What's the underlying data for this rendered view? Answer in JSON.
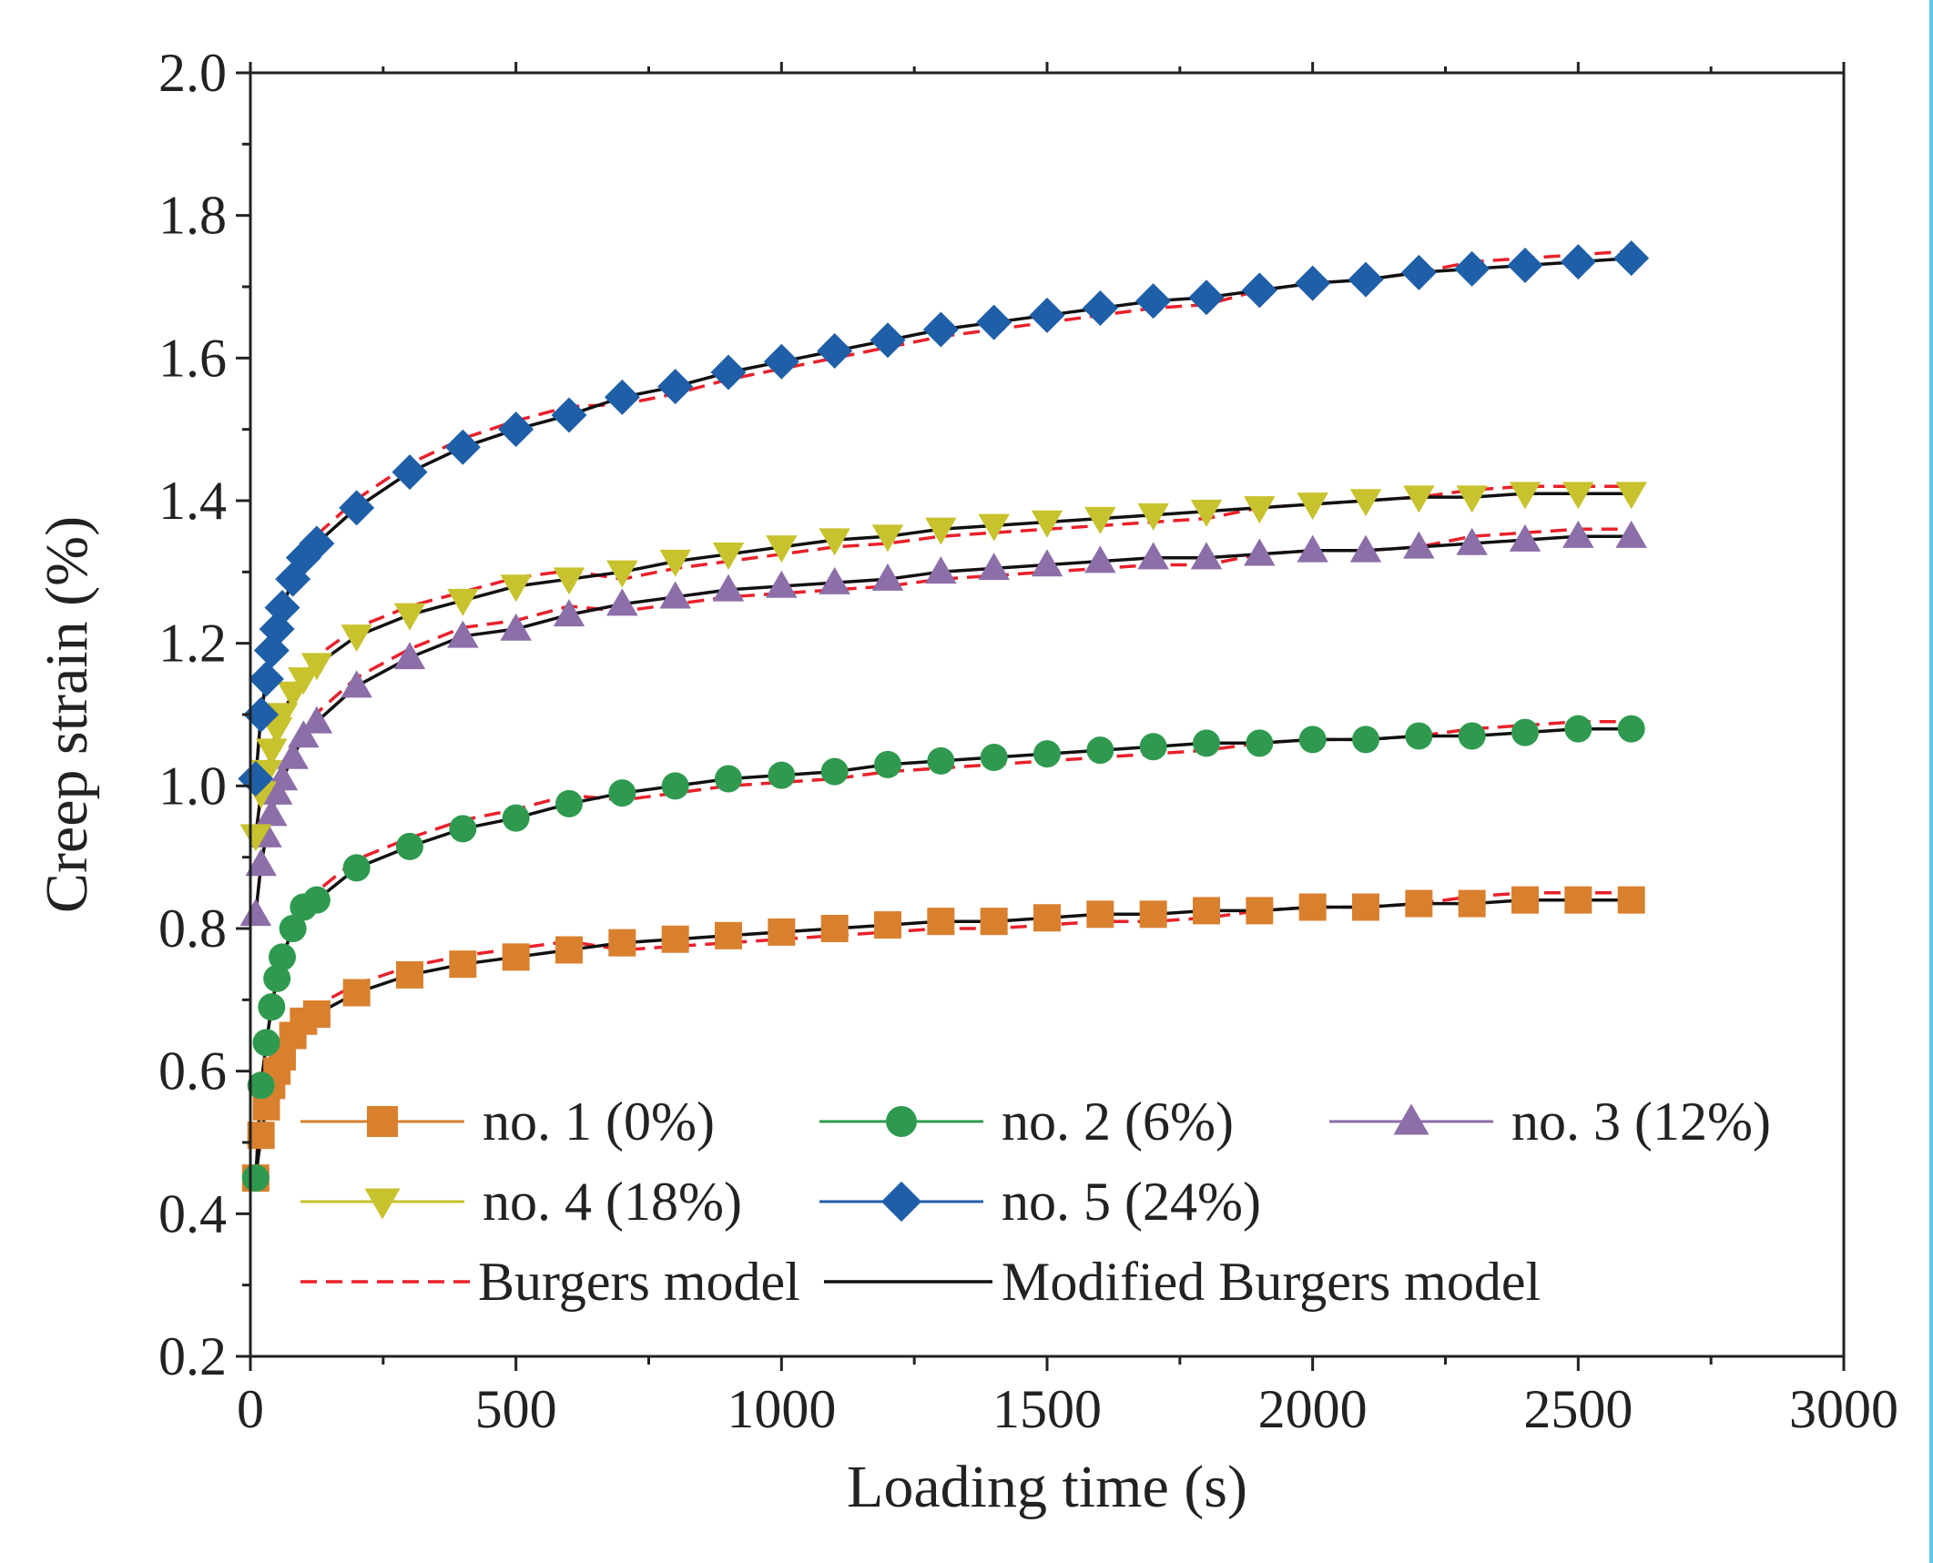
{
  "chart_data": {
    "type": "scatter",
    "title": "",
    "xlabel": "Loading time (s)",
    "ylabel": "Creep strain (%)",
    "xlim": [
      0,
      3000
    ],
    "ylim": [
      0.2,
      2.0
    ],
    "xticks": [
      0,
      500,
      1000,
      1500,
      2000,
      2500,
      3000
    ],
    "xtick_labels": [
      "0",
      "500",
      "1000",
      "1500",
      "2000",
      "2500",
      "3000"
    ],
    "yticks": [
      0.2,
      0.4,
      0.6,
      0.8,
      1.0,
      1.2,
      1.4,
      1.6,
      1.8,
      2.0
    ],
    "ytick_labels": [
      "0.2",
      "0.4",
      "0.6",
      "0.8",
      "1.0",
      "1.2",
      "1.4",
      "1.6",
      "1.8",
      "2.0"
    ],
    "grid": false,
    "legend_position": "bottom-left, inside",
    "series": [
      {
        "name": "no. 1 (0%)",
        "color": "#d9802f",
        "marker": "square",
        "x": [
          10,
          20,
          30,
          40,
          50,
          60,
          80,
          100,
          125,
          200,
          300,
          400,
          500,
          600,
          700,
          800,
          900,
          1000,
          1100,
          1200,
          1300,
          1400,
          1500,
          1600,
          1700,
          1800,
          1900,
          2000,
          2100,
          2200,
          2300,
          2400,
          2500,
          2600
        ],
        "y": [
          0.45,
          0.51,
          0.55,
          0.58,
          0.6,
          0.62,
          0.65,
          0.67,
          0.68,
          0.71,
          0.735,
          0.75,
          0.76,
          0.77,
          0.78,
          0.785,
          0.79,
          0.795,
          0.8,
          0.805,
          0.81,
          0.81,
          0.815,
          0.82,
          0.82,
          0.825,
          0.825,
          0.83,
          0.83,
          0.835,
          0.835,
          0.84,
          0.84,
          0.84
        ]
      },
      {
        "name": "no. 2 (6%)",
        "color": "#2f9a4f",
        "marker": "circle",
        "x": [
          10,
          20,
          30,
          40,
          50,
          60,
          80,
          100,
          125,
          200,
          300,
          400,
          500,
          600,
          700,
          800,
          900,
          1000,
          1100,
          1200,
          1300,
          1400,
          1500,
          1600,
          1700,
          1800,
          1900,
          2000,
          2100,
          2200,
          2300,
          2400,
          2500,
          2600
        ],
        "y": [
          0.45,
          0.58,
          0.64,
          0.69,
          0.73,
          0.76,
          0.8,
          0.83,
          0.84,
          0.885,
          0.915,
          0.94,
          0.955,
          0.975,
          0.99,
          1.0,
          1.01,
          1.015,
          1.02,
          1.03,
          1.035,
          1.04,
          1.045,
          1.05,
          1.055,
          1.06,
          1.06,
          1.065,
          1.065,
          1.07,
          1.07,
          1.075,
          1.08,
          1.08
        ]
      },
      {
        "name": "no. 3 (12%)",
        "color": "#8c6ea8",
        "marker": "triangle-up",
        "x": [
          10,
          20,
          30,
          40,
          50,
          60,
          80,
          100,
          125,
          200,
          300,
          400,
          500,
          600,
          700,
          800,
          900,
          1000,
          1100,
          1200,
          1300,
          1400,
          1500,
          1600,
          1700,
          1800,
          1900,
          2000,
          2100,
          2200,
          2300,
          2400,
          2500,
          2600
        ],
        "y": [
          0.82,
          0.89,
          0.93,
          0.96,
          0.99,
          1.01,
          1.04,
          1.07,
          1.09,
          1.14,
          1.18,
          1.21,
          1.22,
          1.24,
          1.255,
          1.265,
          1.275,
          1.28,
          1.285,
          1.29,
          1.3,
          1.305,
          1.31,
          1.315,
          1.32,
          1.32,
          1.325,
          1.33,
          1.33,
          1.335,
          1.34,
          1.345,
          1.35,
          1.35
        ]
      },
      {
        "name": "no. 4 (18%)",
        "color": "#c8c22e",
        "marker": "triangle-down",
        "x": [
          10,
          20,
          30,
          40,
          50,
          60,
          80,
          100,
          125,
          200,
          300,
          400,
          500,
          600,
          700,
          800,
          900,
          1000,
          1100,
          1200,
          1300,
          1400,
          1500,
          1600,
          1700,
          1800,
          1900,
          2000,
          2100,
          2200,
          2300,
          2400,
          2500,
          2600
        ],
        "y": [
          0.93,
          0.99,
          1.02,
          1.05,
          1.08,
          1.1,
          1.13,
          1.15,
          1.17,
          1.21,
          1.24,
          1.26,
          1.28,
          1.29,
          1.3,
          1.315,
          1.325,
          1.335,
          1.345,
          1.35,
          1.36,
          1.365,
          1.37,
          1.375,
          1.38,
          1.385,
          1.39,
          1.395,
          1.4,
          1.405,
          1.405,
          1.41,
          1.41,
          1.41
        ]
      },
      {
        "name": "no. 5 (24%)",
        "color": "#1f5fa8",
        "marker": "diamond",
        "x": [
          10,
          20,
          30,
          40,
          50,
          60,
          80,
          100,
          125,
          200,
          300,
          400,
          500,
          600,
          700,
          800,
          900,
          1000,
          1100,
          1200,
          1300,
          1400,
          1500,
          1600,
          1700,
          1800,
          1900,
          2000,
          2100,
          2200,
          2300,
          2400,
          2500,
          2600
        ],
        "y": [
          1.01,
          1.1,
          1.15,
          1.19,
          1.22,
          1.25,
          1.29,
          1.32,
          1.34,
          1.39,
          1.44,
          1.475,
          1.5,
          1.52,
          1.545,
          1.56,
          1.58,
          1.595,
          1.61,
          1.625,
          1.64,
          1.65,
          1.66,
          1.67,
          1.68,
          1.685,
          1.695,
          1.705,
          1.71,
          1.72,
          1.725,
          1.73,
          1.735,
          1.74
        ]
      }
    ],
    "fits": [
      {
        "name": "Burgers model",
        "color": "#e8212b",
        "style": "dashed"
      },
      {
        "name": "Modified Burgers model",
        "color": "#111111",
        "style": "solid"
      }
    ]
  }
}
